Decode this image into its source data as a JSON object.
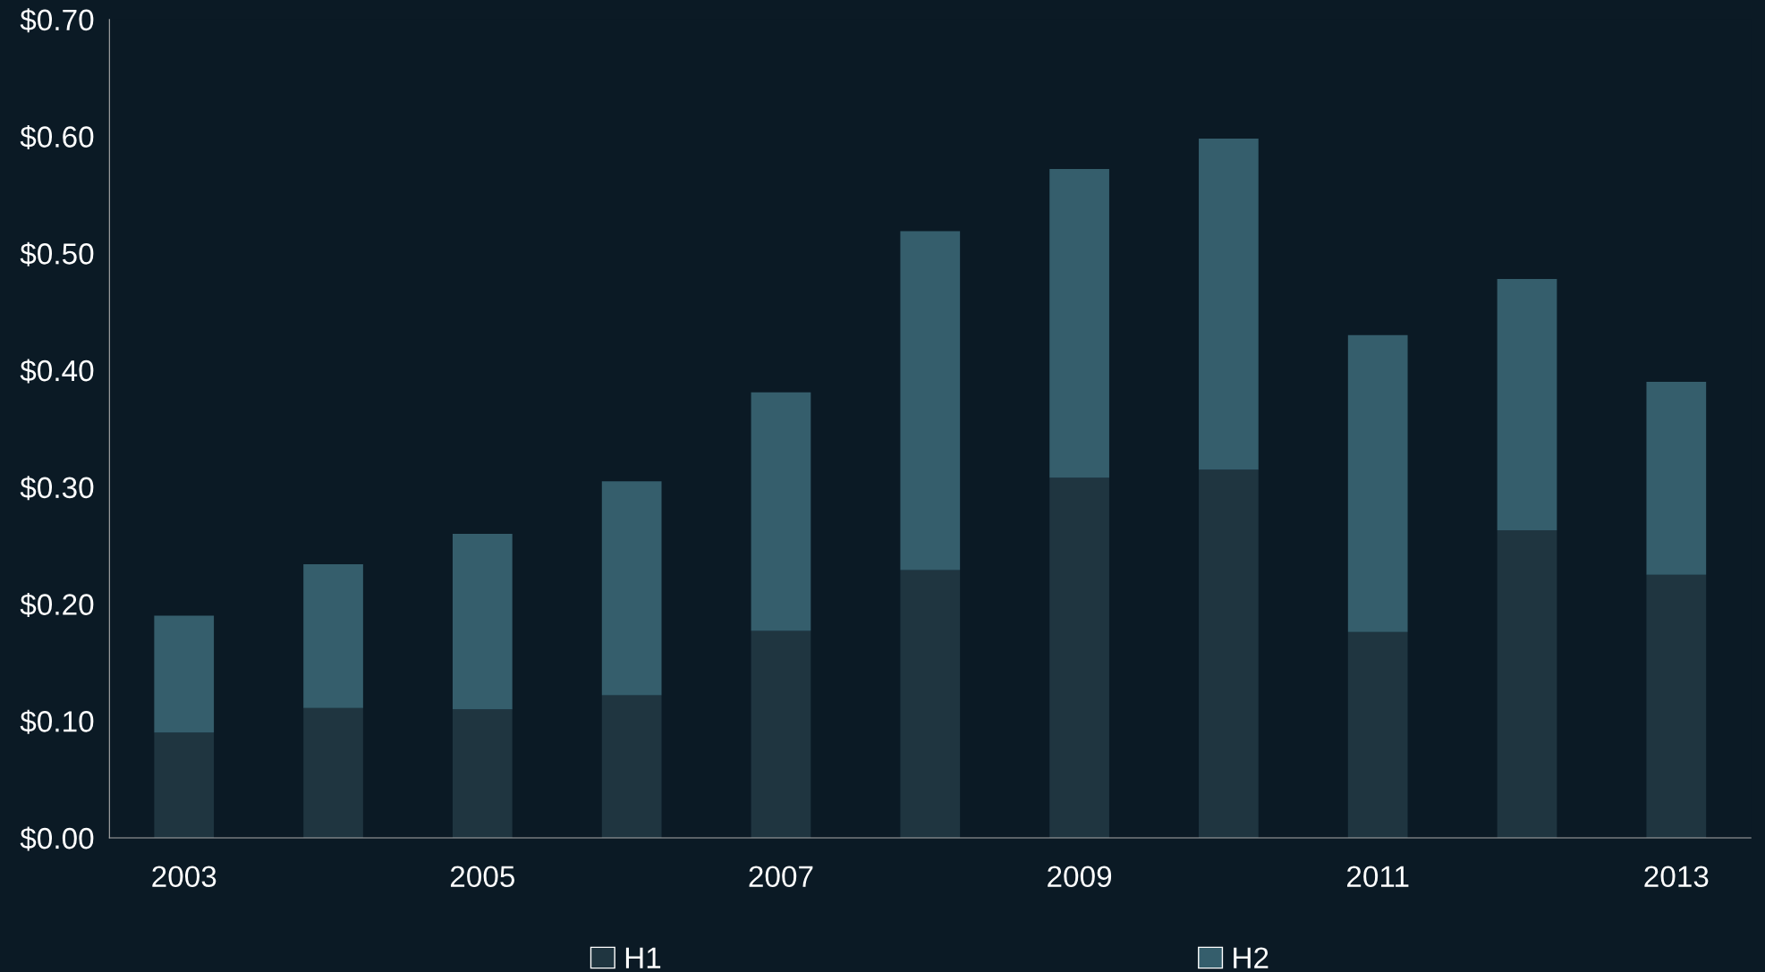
{
  "chart_data": {
    "type": "bar",
    "stacked": true,
    "categories": [
      "2003",
      null,
      "2005",
      null,
      "2007",
      null,
      "2009",
      null,
      "2011",
      null,
      "2013"
    ],
    "series": [
      {
        "name": "H1",
        "color": "#1f3540",
        "values": [
          0.09,
          0.111,
          0.11,
          0.122,
          0.177,
          0.229,
          0.308,
          0.315,
          0.176,
          0.263,
          0.225
        ]
      },
      {
        "name": "H2",
        "color": "#355e6c",
        "values": [
          0.1,
          0.123,
          0.15,
          0.183,
          0.204,
          0.29,
          0.264,
          0.283,
          0.254,
          0.215,
          0.165
        ]
      }
    ],
    "ylim": [
      0,
      0.7
    ],
    "yticks": [
      {
        "value": 0,
        "label": "$0.00"
      },
      {
        "value": 0.1,
        "label": "$0.10"
      },
      {
        "value": 0.2,
        "label": "$0.20"
      },
      {
        "value": 0.3,
        "label": "$0.30"
      },
      {
        "value": 0.4,
        "label": "$0.40"
      },
      {
        "value": 0.5,
        "label": "$0.50"
      },
      {
        "value": 0.6,
        "label": "$0.60"
      },
      {
        "value": 0.7,
        "label": "$0.70"
      }
    ],
    "grid": false,
    "legend": "bottom"
  }
}
